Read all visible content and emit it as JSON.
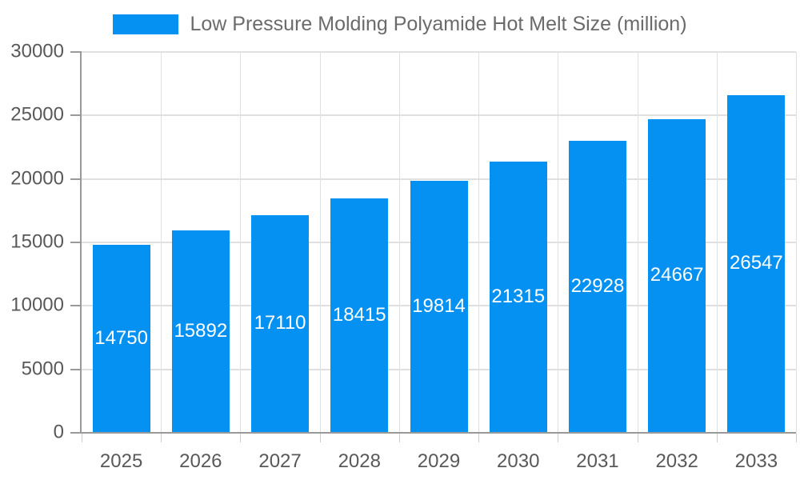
{
  "chart_data": {
    "type": "bar",
    "series_name": "Low Pressure Molding Polyamide Hot Melt Size (million)",
    "categories": [
      "2025",
      "2026",
      "2027",
      "2028",
      "2029",
      "2030",
      "2031",
      "2032",
      "2033"
    ],
    "values": [
      14750,
      15892,
      17110,
      18415,
      19814,
      21315,
      22928,
      24667,
      26547
    ],
    "ylim": [
      0,
      30000
    ],
    "ytick_step": 5000,
    "ytick_labels": [
      "0",
      "5000",
      "10000",
      "15000",
      "20000",
      "25000",
      "30000"
    ],
    "grid": true,
    "legend_position": "top-center",
    "value_labels_position": "inside-center",
    "colors": {
      "bar": "#0591f2",
      "value_label": "#ffffff",
      "axis": "#999999",
      "gridline": "#e0e0e0",
      "minor_tick": "#cccccc",
      "tick_label": "#595959",
      "legend_text": "#6b6b6b",
      "background": "#ffffff"
    }
  }
}
